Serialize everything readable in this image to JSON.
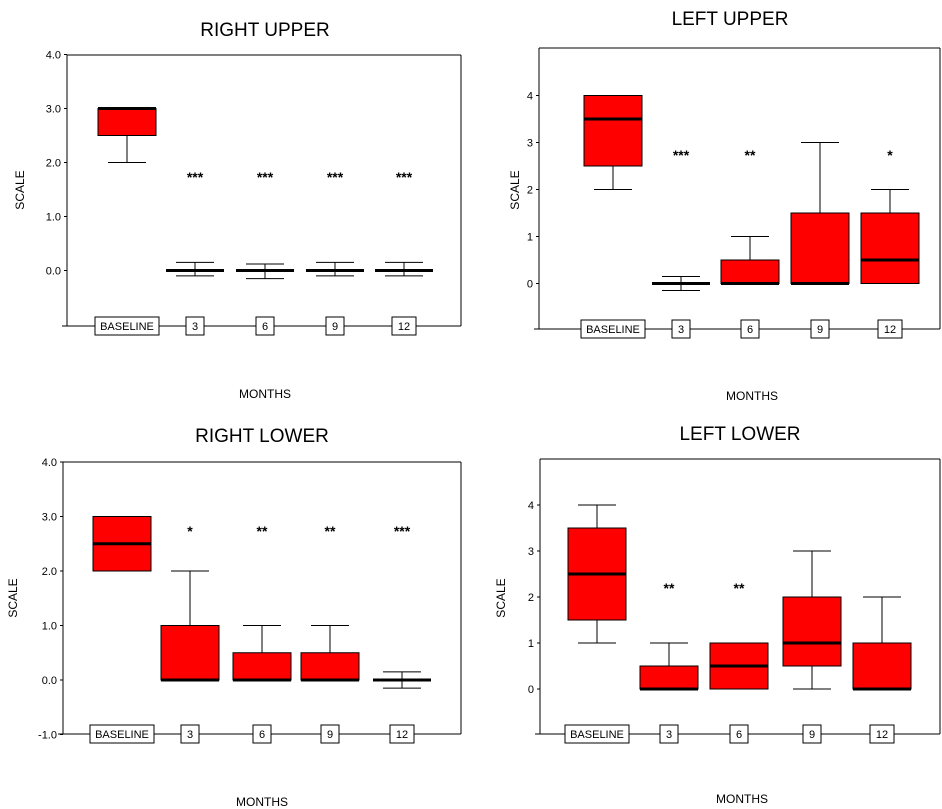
{
  "chart_data": [
    {
      "type": "box",
      "title": "RIGHT UPPER",
      "xlabel": "MONTHS",
      "ylabel": "SCALE",
      "ytick_decimals": 1,
      "yticks": [
        0,
        1,
        2,
        3,
        4
      ],
      "categories": [
        "BASELINE",
        "3",
        "6",
        "9",
        "12"
      ],
      "boxes": [
        {
          "min": 2.0,
          "q1": 2.5,
          "median": 3.0,
          "q3": 3.0,
          "max": 3.0
        },
        {
          "min": -0.1,
          "q1": 0,
          "median": 0,
          "q3": 0,
          "max": 0.15
        },
        {
          "min": -0.15,
          "q1": 0,
          "median": 0,
          "q3": 0,
          "max": 0.12
        },
        {
          "min": -0.1,
          "q1": 0,
          "median": 0,
          "q3": 0,
          "max": 0.15
        },
        {
          "min": -0.1,
          "q1": 0,
          "median": 0,
          "q3": 0,
          "max": 0.15
        }
      ],
      "significance": [
        "",
        "***",
        "***",
        "***",
        "***"
      ]
    },
    {
      "type": "box",
      "title": "LEFT UPPER",
      "xlabel": "MONTHS",
      "ylabel": "SCALE",
      "ytick_decimals": 0,
      "yticks": [
        0,
        1,
        2,
        3,
        4
      ],
      "categories": [
        "BASELINE",
        "3",
        "6",
        "9",
        "12"
      ],
      "boxes": [
        {
          "min": 2.0,
          "q1": 2.5,
          "median": 3.5,
          "q3": 4.0,
          "max": 4.0
        },
        {
          "min": -0.15,
          "q1": 0,
          "median": 0,
          "q3": 0,
          "max": 0.15
        },
        {
          "min": 0,
          "q1": 0,
          "median": 0,
          "q3": 0.5,
          "max": 1.0
        },
        {
          "min": 0,
          "q1": 0,
          "median": 0,
          "q3": 1.5,
          "max": 3.0
        },
        {
          "min": 0,
          "q1": 0,
          "median": 0.5,
          "q3": 1.5,
          "max": 2.0
        }
      ],
      "significance": [
        "",
        "***",
        "**",
        "",
        "*"
      ]
    },
    {
      "type": "box",
      "title": "RIGHT LOWER",
      "xlabel": "MONTHS",
      "ylabel": "SCALE",
      "ytick_decimals": 1,
      "yticks": [
        -1,
        0,
        1,
        2,
        3,
        4
      ],
      "categories": [
        "BASELINE",
        "3",
        "6",
        "9",
        "12"
      ],
      "boxes": [
        {
          "min": 2.0,
          "q1": 2.0,
          "median": 2.5,
          "q3": 3.0,
          "max": 3.0
        },
        {
          "min": 0,
          "q1": 0,
          "median": 0,
          "q3": 1.0,
          "max": 2.0
        },
        {
          "min": 0,
          "q1": 0,
          "median": 0,
          "q3": 0.5,
          "max": 1.0
        },
        {
          "min": 0,
          "q1": 0,
          "median": 0,
          "q3": 0.5,
          "max": 1.0
        },
        {
          "min": -0.15,
          "q1": 0,
          "median": 0,
          "q3": 0,
          "max": 0.15
        }
      ],
      "significance": [
        "",
        "*",
        "**",
        "**",
        "***"
      ]
    },
    {
      "type": "box",
      "title": "LEFT LOWER",
      "xlabel": "MONTHS",
      "ylabel": "SCALE",
      "ytick_decimals": 0,
      "yticks": [
        0,
        1,
        2,
        3,
        4
      ],
      "categories": [
        "BASELINE",
        "3",
        "6",
        "9",
        "12"
      ],
      "boxes": [
        {
          "min": 1.0,
          "q1": 1.5,
          "median": 2.5,
          "q3": 3.5,
          "max": 4.0
        },
        {
          "min": 0,
          "q1": 0,
          "median": 0,
          "q3": 0.5,
          "max": 1.0
        },
        {
          "min": 0,
          "q1": 0,
          "median": 0.5,
          "q3": 1.0,
          "max": 1.0
        },
        {
          "min": 0,
          "q1": 0.5,
          "median": 1.0,
          "q3": 2.0,
          "max": 3.0
        },
        {
          "min": 0,
          "q1": 0,
          "median": 0,
          "q3": 1.0,
          "max": 2.0
        }
      ],
      "significance": [
        "",
        "**",
        "**",
        "",
        ""
      ]
    }
  ],
  "colors": {
    "box_fill": "#ff0000",
    "median": "#000000",
    "frame": "#000000"
  }
}
